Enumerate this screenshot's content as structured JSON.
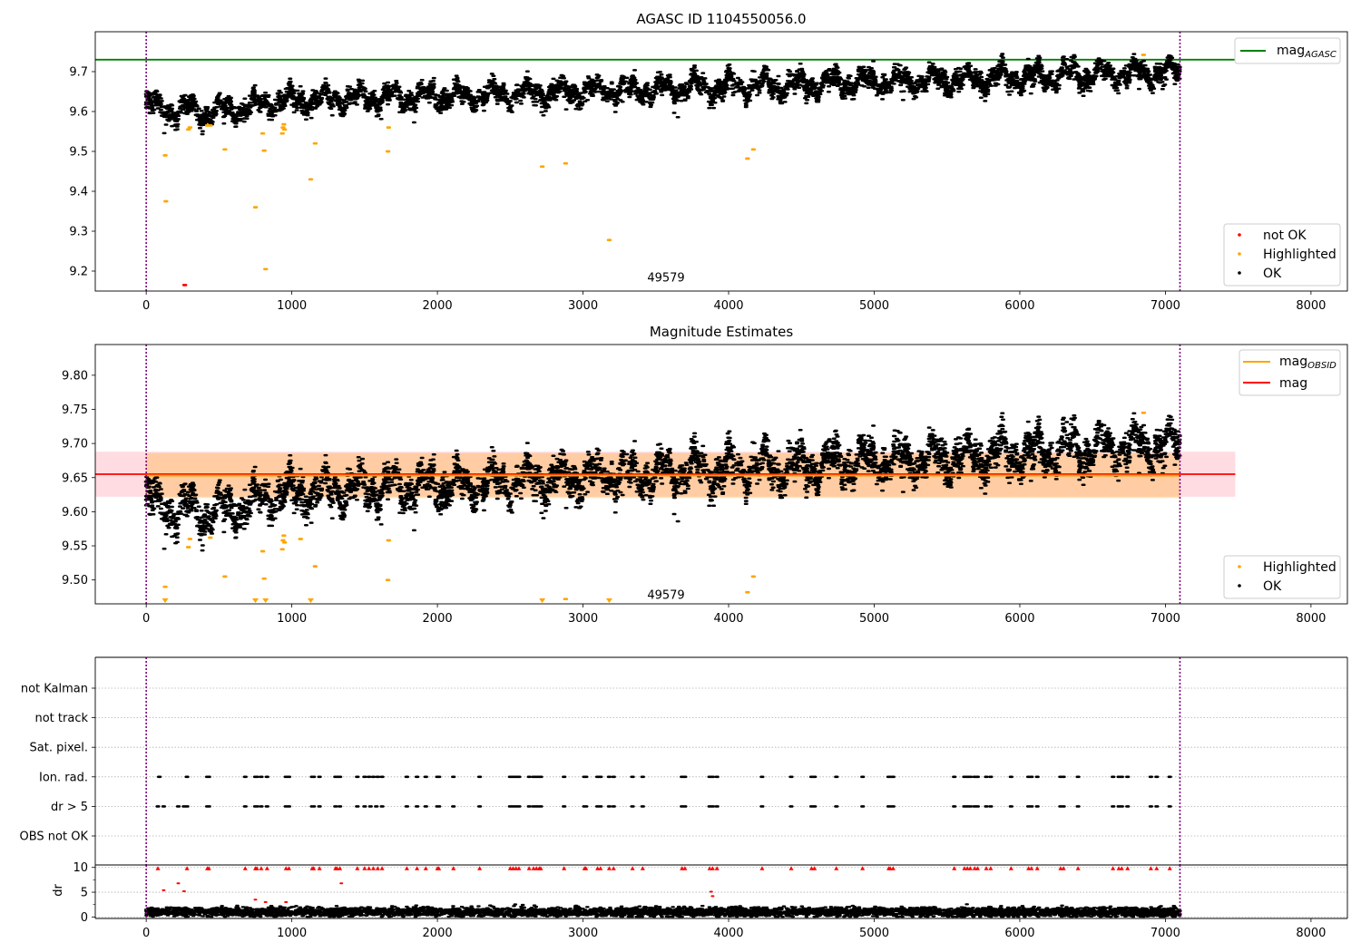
{
  "chart_data": [
    {
      "type": "scatter",
      "title": "AGASC ID 1104550056.0",
      "xlim": [
        -350,
        8250
      ],
      "ylim": [
        9.15,
        9.8
      ],
      "xticks": [
        0,
        1000,
        2000,
        3000,
        4000,
        5000,
        6000,
        7000,
        8000
      ],
      "yticks": [
        9.2,
        9.3,
        9.4,
        9.5,
        9.6,
        9.7
      ],
      "ytick_labels": [
        "9.2",
        "9.3",
        "9.4",
        "9.5",
        "9.6",
        "9.7"
      ],
      "grid": false,
      "vlines": [
        0,
        7100
      ],
      "annotation": {
        "text": "49579",
        "x": 3570,
        "y": 9.165
      },
      "hline": {
        "name": "mag",
        "subscript": "AGASC",
        "value": 9.73,
        "color": "#008000"
      },
      "highlighted_points": [
        [
          130,
          9.49
        ],
        [
          135,
          9.375
        ],
        [
          290,
          9.555
        ],
        [
          300,
          9.56
        ],
        [
          420,
          9.565
        ],
        [
          440,
          9.565
        ],
        [
          540,
          9.505
        ],
        [
          750,
          9.36
        ],
        [
          800,
          9.545
        ],
        [
          810,
          9.502
        ],
        [
          820,
          9.205
        ],
        [
          935,
          9.545
        ],
        [
          940,
          9.56
        ],
        [
          945,
          9.568
        ],
        [
          950,
          9.555
        ],
        [
          1130,
          9.43
        ],
        [
          1160,
          9.52
        ],
        [
          1660,
          9.5
        ],
        [
          1665,
          9.56
        ],
        [
          2720,
          9.462
        ],
        [
          2880,
          9.47
        ],
        [
          3180,
          9.278
        ],
        [
          4130,
          9.482
        ],
        [
          4170,
          9.505
        ],
        [
          6850,
          9.742
        ]
      ],
      "not_ok_points": [
        [
          265,
          9.165
        ]
      ],
      "ok_series": {
        "n": 5200,
        "x_range": [
          0,
          7100
        ],
        "trend_start": 9.615,
        "trend_end": 9.7
      },
      "legend_upper": [
        {
          "label": "mag",
          "subscript": "AGASC",
          "color": "#008000"
        }
      ],
      "legend_lower": [
        {
          "label": "not OK",
          "color": "#ff0000"
        },
        {
          "label": "Highlighted",
          "color": "#ffa500"
        },
        {
          "label": "OK",
          "color": "#000000"
        }
      ]
    },
    {
      "type": "scatter",
      "title": "Magnitude Estimates",
      "xlim": [
        -350,
        8250
      ],
      "ylim": [
        9.465,
        9.845
      ],
      "xticks": [
        0,
        1000,
        2000,
        3000,
        4000,
        5000,
        6000,
        7000,
        8000
      ],
      "yticks": [
        9.5,
        9.55,
        9.6,
        9.65,
        9.7,
        9.75,
        9.8
      ],
      "ytick_labels": [
        "9.50",
        "9.55",
        "9.60",
        "9.65",
        "9.70",
        "9.75",
        "9.80"
      ],
      "grid": false,
      "vlines": [
        0,
        7100
      ],
      "annotation": {
        "text": "49579",
        "x": 3570,
        "y": 9.475
      },
      "mag_line": {
        "name": "mag",
        "value": 9.655,
        "color": "#ff0000",
        "band": [
          9.622,
          9.688
        ],
        "band_x": [
          -350,
          7480
        ],
        "band_color": "#ffc0cb"
      },
      "mag_obsid": {
        "name": "mag",
        "subscript": "OBSID",
        "value": 9.653,
        "color": "#ffa500",
        "band": [
          9.62,
          9.686
        ],
        "x_range": [
          0,
          7100
        ]
      },
      "highlighted_points": [
        [
          130,
          9.49
        ],
        [
          290,
          9.548
        ],
        [
          300,
          9.56
        ],
        [
          440,
          9.562
        ],
        [
          540,
          9.505
        ],
        [
          810,
          9.502
        ],
        [
          800,
          9.542
        ],
        [
          935,
          9.545
        ],
        [
          940,
          9.558
        ],
        [
          945,
          9.565
        ],
        [
          950,
          9.555
        ],
        [
          1060,
          9.56
        ],
        [
          1160,
          9.52
        ],
        [
          1660,
          9.5
        ],
        [
          1665,
          9.558
        ],
        [
          2880,
          9.472
        ],
        [
          4130,
          9.482
        ],
        [
          4170,
          9.505
        ],
        [
          6850,
          9.745
        ]
      ],
      "clipped_markers": [
        130,
        750,
        820,
        1130,
        2720,
        3180
      ],
      "ok_series": {
        "n": 5200,
        "x_range": [
          0,
          7100
        ],
        "trend_start": 9.615,
        "trend_end": 9.7
      },
      "legend_upper": [
        {
          "label": "mag",
          "subscript": "OBSID",
          "color": "#ffa500"
        },
        {
          "label": "mag",
          "color": "#ff0000"
        }
      ],
      "legend_lower": [
        {
          "label": "Highlighted",
          "color": "#ffa500"
        },
        {
          "label": "OK",
          "color": "#000000"
        }
      ]
    },
    {
      "type": "scatter",
      "title": "",
      "xlim": [
        -350,
        8250
      ],
      "categories": [
        "not Kalman",
        "not track",
        "Sat. pixel.",
        "Ion. rad.",
        "dr > 5",
        "OBS not OK"
      ],
      "grid": true,
      "vlines": [
        0,
        7100
      ],
      "flag_events": {
        "Ion. rad.": [
          90,
          280,
          420,
          430,
          680,
          750,
          760,
          790,
          830,
          960,
          980,
          1140,
          1150,
          1190,
          1300,
          1310,
          1330,
          1450,
          1500,
          1530,
          1560,
          1590,
          1620,
          1790,
          1860,
          1920,
          2000,
          2010,
          2110,
          2290,
          2500,
          2520,
          2540,
          2560,
          2630,
          2660,
          2680,
          2700,
          2710,
          2870,
          3010,
          3020,
          3100,
          3120,
          3180,
          3210,
          3340,
          3410,
          3680,
          3700,
          3870,
          3890,
          3920,
          4230,
          4430,
          4570,
          4590,
          4740,
          4920,
          5100,
          5110,
          5130,
          5550,
          5620,
          5640,
          5660,
          5690,
          5710,
          5770,
          5800,
          5940,
          6060,
          6080,
          6120,
          6280,
          6300,
          6400,
          6640,
          6680,
          6700,
          6740,
          6900,
          6940,
          7030
        ],
        "dr > 5": [
          80,
          120,
          220,
          260,
          280,
          420,
          430,
          680,
          750,
          760,
          790,
          830,
          960,
          980,
          1140,
          1150,
          1190,
          1300,
          1330,
          1450,
          1500,
          1540,
          1580,
          1620,
          1790,
          1860,
          1920,
          2000,
          2010,
          2110,
          2290,
          2500,
          2520,
          2540,
          2560,
          2630,
          2660,
          2680,
          2700,
          2710,
          2870,
          3010,
          3020,
          3100,
          3120,
          3180,
          3210,
          3340,
          3410,
          3680,
          3700,
          3870,
          3890,
          3920,
          4230,
          4430,
          4570,
          4590,
          4740,
          4920,
          5100,
          5110,
          5130,
          5550,
          5620,
          5640,
          5660,
          5690,
          5710,
          5770,
          5800,
          5940,
          6060,
          6080,
          6120,
          6280,
          6300,
          6400,
          6640,
          6680,
          6700,
          6740,
          6900,
          6940,
          7030
        ]
      }
    },
    {
      "type": "scatter",
      "title": "",
      "ylabel": "dr",
      "xlim": [
        -350,
        8250
      ],
      "ylim": [
        -0.3,
        10.5
      ],
      "xticks": [
        0,
        1000,
        2000,
        3000,
        4000,
        5000,
        6000,
        7000,
        8000
      ],
      "yticks": [
        0,
        5,
        10
      ],
      "ytick_labels": [
        "0",
        "5",
        "10"
      ],
      "grid": true,
      "vlines": [
        0,
        7100
      ],
      "clipped_red_markers": [
        80,
        280,
        420,
        430,
        680,
        750,
        760,
        790,
        830,
        960,
        980,
        1140,
        1150,
        1190,
        1300,
        1310,
        1330,
        1450,
        1500,
        1530,
        1560,
        1590,
        1620,
        1790,
        1860,
        1920,
        2000,
        2010,
        2110,
        2290,
        2500,
        2520,
        2540,
        2560,
        2630,
        2660,
        2680,
        2700,
        2710,
        2870,
        3010,
        3020,
        3100,
        3120,
        3180,
        3210,
        3340,
        3410,
        3680,
        3700,
        3870,
        3890,
        3920,
        4230,
        4430,
        4570,
        4590,
        4740,
        4920,
        5100,
        5110,
        5130,
        5550,
        5620,
        5640,
        5660,
        5690,
        5710,
        5770,
        5800,
        5940,
        6060,
        6080,
        6120,
        6280,
        6300,
        6400,
        6640,
        6680,
        6700,
        6740,
        6900,
        6940,
        7030
      ],
      "red_points": [
        [
          120,
          5.4
        ],
        [
          220,
          6.8
        ],
        [
          260,
          5.2
        ],
        [
          750,
          3.5
        ],
        [
          820,
          3.0
        ],
        [
          960,
          3.0
        ],
        [
          1340,
          6.8
        ],
        [
          3880,
          5.1
        ],
        [
          3890,
          4.2
        ]
      ],
      "ok_series": {
        "n": 5200,
        "x_range": [
          0,
          7100
        ],
        "mean": 1.0
      }
    }
  ]
}
